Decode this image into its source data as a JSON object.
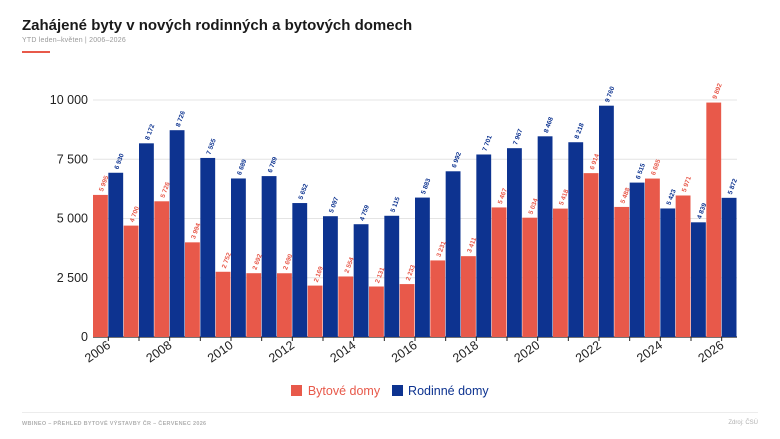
{
  "title": "Zahájené byty v nových rodinných a bytových domech",
  "subtitle": "YTD leden–květen | 2006–2026",
  "footer": {
    "left": "WBINEO – PŘEHLED BYTOVÉ VÝSTAVBY ČR – ČERVENEC 2026",
    "right": "Zdroj: ČSÚ"
  },
  "colors": {
    "bytove": "#e8594a",
    "rodinne": "#0d3390",
    "accent": "#e8594a"
  },
  "chart_data": {
    "type": "bar",
    "title": "Zahájené byty v nových rodinných a bytových domech",
    "subtitle": "YTD leden–květen | 2006–2026",
    "categories": [
      "2006",
      "2007",
      "2008",
      "2009",
      "2010",
      "2011",
      "2012",
      "2013",
      "2014",
      "2015",
      "2016",
      "2017",
      "2018",
      "2019",
      "2020",
      "2021",
      "2022",
      "2023",
      "2024",
      "2025",
      "2026"
    ],
    "x_tick_labels": [
      "2006",
      "2008",
      "2010",
      "2012",
      "2014",
      "2016",
      "2018",
      "2020",
      "2022",
      "2024",
      "2026"
    ],
    "series": [
      {
        "name": "Bytové domy",
        "color": "#e8594a",
        "values": [
          5995,
          4700,
          5726,
          3994,
          2752,
          2692,
          2690,
          2169,
          2554,
          2131,
          2233,
          3231,
          3411,
          5467,
          5034,
          5418,
          6914,
          5488,
          6685,
          5971,
          9892
        ],
        "labels": [
          "5 995",
          "4 700",
          "5 726",
          "3 994",
          "2 752",
          "2 692",
          "2 690",
          "2 169",
          "2 554",
          "2 131",
          "2 233",
          "3 231",
          "3 411",
          "5 467",
          "5 034",
          "5 418",
          "6 914",
          "5 488",
          "6 685",
          "5 971",
          "9 892"
        ]
      },
      {
        "name": "Rodinné domy",
        "color": "#0d3390",
        "values": [
          6930,
          8172,
          8726,
          7555,
          6689,
          6789,
          5652,
          5097,
          4759,
          5115,
          5883,
          6992,
          7701,
          7967,
          8468,
          8218,
          9760,
          6515,
          5423,
          4839,
          5872
        ],
        "labels": [
          "6 930",
          "8 172",
          "8 726",
          "7 555",
          "6 689",
          "6 789",
          "5 652",
          "5 097",
          "4 759",
          "5 115",
          "5 883",
          "6 992",
          "7 701",
          "7 967",
          "8 468",
          "8 218",
          "9 760",
          "6 515",
          "5 423",
          "4 839",
          "5 872"
        ]
      }
    ],
    "ylim": [
      0,
      10000
    ],
    "yticks": [
      0,
      2500,
      5000,
      7500,
      10000
    ],
    "ytick_labels": [
      "0",
      "2 500",
      "5 000",
      "7 500",
      "10 000"
    ],
    "grid": true,
    "legend": "bottom-center"
  }
}
